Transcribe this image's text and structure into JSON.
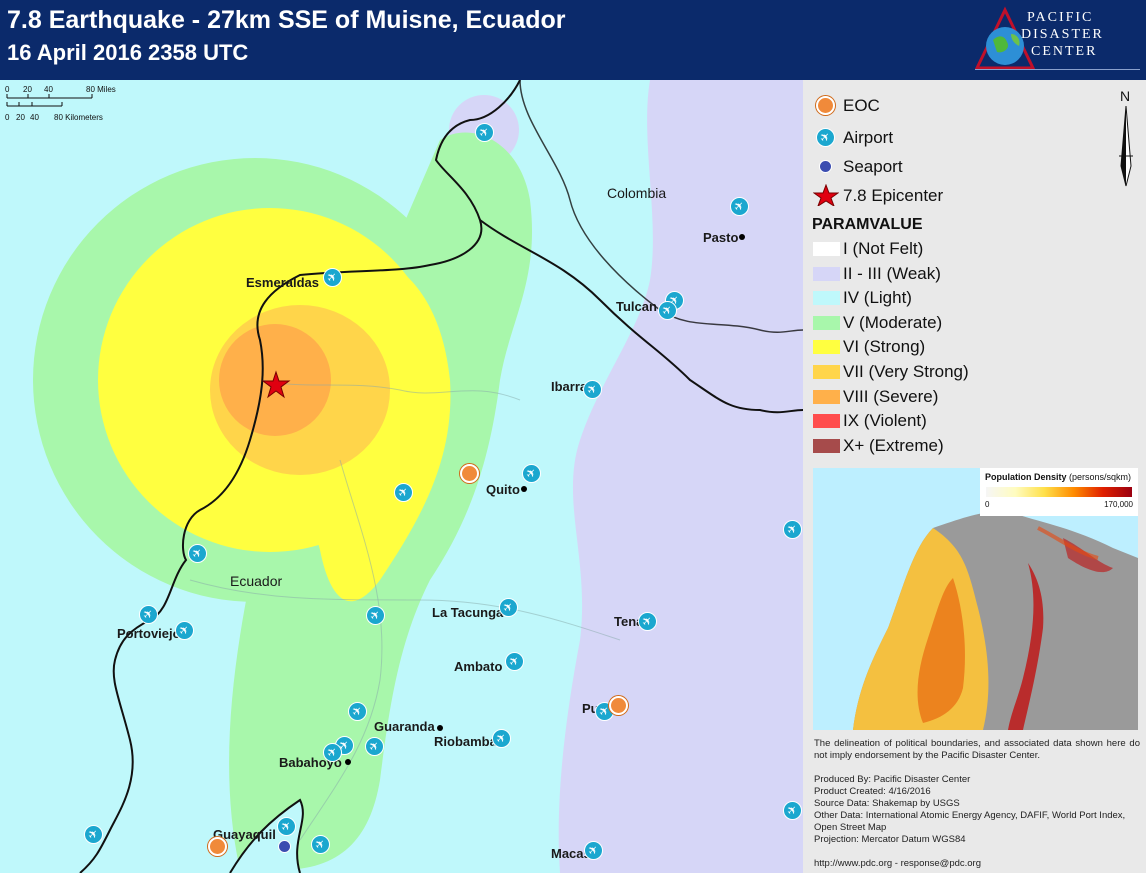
{
  "header": {
    "title": "7.8 Earthquake - 27km SSE of Muisne, Ecuador",
    "subtitle": "16 April 2016 2358 UTC",
    "logo": {
      "line1": "PACIFIC",
      "line2": "DISASTER",
      "line3": "CENTER"
    }
  },
  "colors": {
    "header_bg": "#0b2a6b",
    "not_felt": "#ffffff",
    "weak": "#d6d6f7",
    "light": "#bff8fb",
    "moderate": "#a8f7ab",
    "strong": "#ffff40",
    "very_strong": "#ffd54a",
    "severe": "#ffb04a",
    "violent": "#ff4d4d",
    "extreme": "#a64b4b",
    "border": "#111111"
  },
  "scalebar": {
    "miles_ticks": [
      "0",
      "20",
      "40",
      "80 Miles"
    ],
    "km_ticks": [
      "0",
      "20",
      "40",
      "80 Kilometers"
    ]
  },
  "map": {
    "countries": [
      "Colombia",
      "Ecuador"
    ],
    "cities": [
      "Esmeraldas",
      "Pasto",
      "Tulcan",
      "Ibarra",
      "Quito",
      "Portoviejo",
      "La Tacunga",
      "Tena",
      "Ambato",
      "Guaranda",
      "Riobamba",
      "Puyo",
      "Babahoyo",
      "Guayaquil",
      "Macas"
    ]
  },
  "legend": {
    "symbols": [
      {
        "label": "EOC",
        "icon": "eoc-icon"
      },
      {
        "label": "Airport",
        "icon": "airport-icon"
      },
      {
        "label": "Seaport",
        "icon": "seaport-icon"
      },
      {
        "label": "7.8 Epicenter",
        "icon": "epicenter-star-icon"
      }
    ],
    "param_heading": "PARAMVALUE",
    "classes": [
      {
        "label": "I (Not Felt)",
        "color": "#ffffff"
      },
      {
        "label": "II - III (Weak)",
        "color": "#d6d6f7"
      },
      {
        "label": "IV (Light)",
        "color": "#bff8fb"
      },
      {
        "label": "V (Moderate)",
        "color": "#a8f7ab"
      },
      {
        "label": "VI (Strong)",
        "color": "#ffff40"
      },
      {
        "label": "VII (Very Strong)",
        "color": "#ffd54a"
      },
      {
        "label": "VIII (Severe)",
        "color": "#ffb04a"
      },
      {
        "label": "IX (Violent)",
        "color": "#ff4d4d"
      },
      {
        "label": "X+ (Extreme)",
        "color": "#a64b4b"
      }
    ],
    "north": "N"
  },
  "inset": {
    "title_bold": "Population Density",
    "title_unit": "(persons/sqkm)",
    "min": "0",
    "max": "170,000"
  },
  "disclaimer": "The delineation of political boundaries, and associated data shown here do not imply endorsement by the Pacific Disaster Center.",
  "credits": [
    "Produced By: Pacific Disaster Center",
    "Product Created: 4/16/2016",
    "Source Data: Shakemap by USGS",
    "Other Data: International Atomic Energy Agency, DAFIF, World Port Index, Open Street Map",
    "Projection: Mercator Datum WGS84"
  ],
  "footer": "http://www.pdc.org - response@pdc.org"
}
